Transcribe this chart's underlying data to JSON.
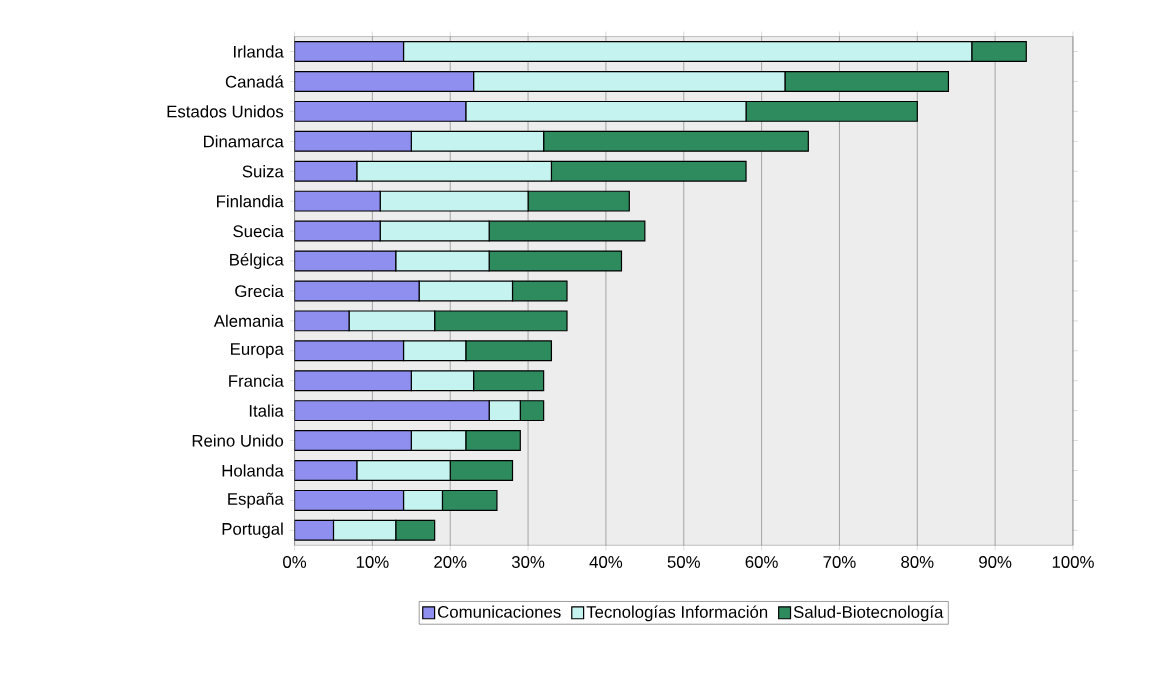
{
  "chart_data": {
    "type": "bar",
    "orientation": "horizontal",
    "stacked": true,
    "categories": [
      "Irlanda",
      "Canadá",
      "Estados Unidos",
      "Dinamarca",
      "Suiza",
      "Finlandia",
      "Suecia",
      "Bélgica",
      "Grecia",
      "Alemania",
      "Europa",
      "Francia",
      "Italia",
      "Reino Unido",
      "Holanda",
      "España",
      "Portugal"
    ],
    "series": [
      {
        "name": "Comunicaciones",
        "color": "#8f8fef",
        "values": [
          14,
          23,
          22,
          15,
          8,
          11,
          11,
          13,
          16,
          7,
          14,
          15,
          25,
          15,
          8,
          14,
          5
        ]
      },
      {
        "name": "Tecnologías Información",
        "color": "#c4f3f0",
        "values": [
          73,
          40,
          36,
          17,
          25,
          19,
          14,
          12,
          12,
          11,
          8,
          8,
          4,
          7,
          12,
          5,
          8
        ]
      },
      {
        "name": "Salud-Biotecnología",
        "color": "#2e8b5e",
        "values": [
          7,
          21,
          22,
          34,
          25,
          13,
          20,
          17,
          7,
          17,
          11,
          9,
          3,
          7,
          8,
          7,
          5
        ]
      }
    ],
    "xlim": [
      0,
      100
    ],
    "xticks": [
      {
        "value": 0,
        "label": "0%"
      },
      {
        "value": 10,
        "label": "10%"
      },
      {
        "value": 20,
        "label": "20%"
      },
      {
        "value": 30,
        "label": "30%"
      },
      {
        "value": 40,
        "label": "40%"
      },
      {
        "value": 50,
        "label": "50%"
      },
      {
        "value": 60,
        "label": "60%"
      },
      {
        "value": 70,
        "label": "70%"
      },
      {
        "value": 80,
        "label": "80%"
      },
      {
        "value": 90,
        "label": "90%"
      },
      {
        "value": 100,
        "label": "100%"
      }
    ],
    "grid": "x",
    "legend": "bottom"
  }
}
